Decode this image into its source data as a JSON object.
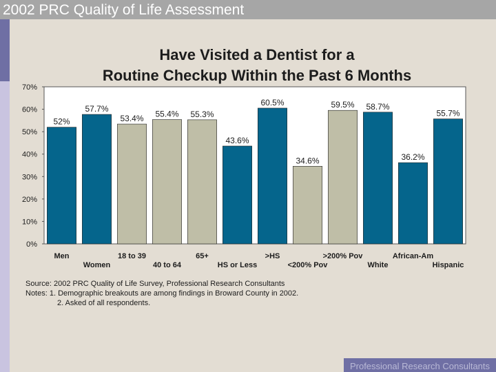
{
  "header": {
    "title": "2002 PRC Quality of Life Assessment"
  },
  "chart_data": {
    "type": "bar",
    "title_line1": "Have Visited a Dentist for a",
    "title_line2": "Routine Checkup Within the Past 6 Months",
    "categories": [
      "Men",
      "Women",
      "18 to 39",
      "40 to 64",
      "65+",
      "HS or Less",
      ">HS",
      "<200% Pov",
      ">200% Pov",
      "White",
      "African-Am",
      "Hispanic"
    ],
    "values": [
      52,
      57.7,
      53.4,
      55.4,
      55.3,
      43.6,
      60.5,
      34.6,
      59.5,
      58.7,
      36.2,
      55.7
    ],
    "value_labels": [
      "52%",
      "57.7%",
      "53.4%",
      "55.4%",
      "55.3%",
      "43.6%",
      "60.5%",
      "34.6%",
      "59.5%",
      "58.7%",
      "36.2%",
      "55.7%"
    ],
    "bar_colors": [
      "#05658c",
      "#05658c",
      "#bfbea7",
      "#bfbea7",
      "#bfbea7",
      "#05658c",
      "#05658c",
      "#bfbea7",
      "#bfbea7",
      "#05658c",
      "#05658c",
      "#05658c"
    ],
    "y_ticks": [
      "0%",
      "10%",
      "20%",
      "30%",
      "40%",
      "50%",
      "60%",
      "70%"
    ],
    "ylim": [
      0,
      70
    ],
    "grid": false,
    "legend": "none"
  },
  "footnotes": {
    "source": "Source: 2002 PRC Quality of Life Survey, Professional Research Consultants",
    "note1": "Notes:   1. Demographic breakouts are among findings in Broward County in 2002.",
    "note2": "2. Asked of all respondents."
  },
  "brand": {
    "text": "Professional Research Consultants"
  }
}
